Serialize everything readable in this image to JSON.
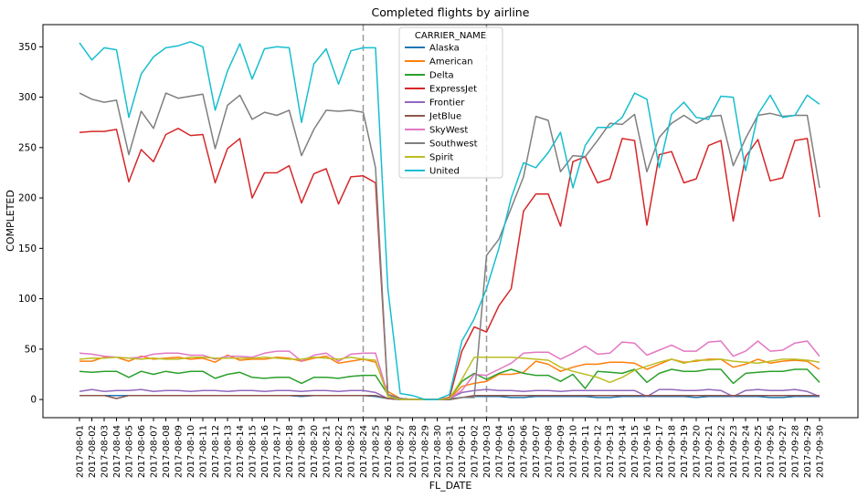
{
  "chart_data": {
    "type": "line",
    "title": "Completed flights by airline",
    "xlabel": "FL_DATE",
    "ylabel": "COMPLETED",
    "ylim": [
      -18,
      372
    ],
    "yticks": [
      0,
      50,
      100,
      150,
      200,
      250,
      300,
      350
    ],
    "grid": false,
    "legend_title": "CARRIER_NAME",
    "legend_position": "top-center",
    "vlines": [
      "2017-08-24",
      "2017-09-03"
    ],
    "x": [
      "2017-08-01",
      "2017-08-02",
      "2017-08-03",
      "2017-08-04",
      "2017-08-05",
      "2017-08-06",
      "2017-08-07",
      "2017-08-08",
      "2017-08-09",
      "2017-08-10",
      "2017-08-11",
      "2017-08-12",
      "2017-08-13",
      "2017-08-14",
      "2017-08-15",
      "2017-08-16",
      "2017-08-17",
      "2017-08-18",
      "2017-08-19",
      "2017-08-20",
      "2017-08-21",
      "2017-08-22",
      "2017-08-23",
      "2017-08-24",
      "2017-08-25",
      "2017-08-26",
      "2017-08-27",
      "2017-08-28",
      "2017-08-29",
      "2017-08-30",
      "2017-08-31",
      "2017-09-01",
      "2017-09-02",
      "2017-09-03",
      "2017-09-04",
      "2017-09-05",
      "2017-09-06",
      "2017-09-07",
      "2017-09-08",
      "2017-09-09",
      "2017-09-10",
      "2017-09-11",
      "2017-09-12",
      "2017-09-13",
      "2017-09-14",
      "2017-09-15",
      "2017-09-16",
      "2017-09-17",
      "2017-09-18",
      "2017-09-19",
      "2017-09-20",
      "2017-09-21",
      "2017-09-22",
      "2017-09-23",
      "2017-09-24",
      "2017-09-25",
      "2017-09-26",
      "2017-09-27",
      "2017-09-28",
      "2017-09-29",
      "2017-09-30"
    ],
    "series": [
      {
        "name": "Alaska",
        "color": "#1f77b4",
        "values": [
          4,
          4,
          4,
          4,
          4,
          4,
          4,
          4,
          4,
          4,
          4,
          4,
          4,
          4,
          4,
          4,
          4,
          4,
          3,
          4,
          4,
          4,
          4,
          4,
          3,
          1,
          0,
          0,
          0,
          0,
          0,
          2,
          3,
          3,
          3,
          2,
          2,
          3,
          3,
          3,
          3,
          3,
          2,
          2,
          3,
          3,
          3,
          3,
          3,
          3,
          2,
          3,
          3,
          3,
          3,
          3,
          2,
          2,
          3,
          3,
          3
        ]
      },
      {
        "name": "American",
        "color": "#ff7f0e",
        "values": [
          38,
          38,
          42,
          42,
          38,
          43,
          40,
          41,
          42,
          40,
          41,
          37,
          44,
          39,
          40,
          40,
          42,
          41,
          38,
          41,
          43,
          36,
          38,
          40,
          37,
          8,
          1,
          0,
          0,
          0,
          1,
          13,
          16,
          18,
          25,
          25,
          27,
          38,
          35,
          28,
          32,
          35,
          35,
          37,
          37,
          36,
          30,
          35,
          40,
          37,
          38,
          40,
          40,
          32,
          35,
          40,
          36,
          38,
          39,
          38,
          30
        ]
      },
      {
        "name": "Delta",
        "color": "#2ca02c",
        "values": [
          28,
          27,
          28,
          28,
          22,
          28,
          25,
          28,
          26,
          28,
          28,
          21,
          25,
          27,
          22,
          21,
          22,
          22,
          16,
          22,
          22,
          21,
          23,
          24,
          24,
          5,
          1,
          0,
          0,
          0,
          1,
          18,
          26,
          20,
          26,
          30,
          26,
          24,
          24,
          18,
          25,
          11,
          28,
          27,
          26,
          30,
          17,
          26,
          30,
          28,
          28,
          30,
          30,
          16,
          26,
          27,
          28,
          28,
          30,
          30,
          17
        ]
      },
      {
        "name": "ExpressJet",
        "color": "#d62728",
        "values": [
          265,
          266,
          266,
          268,
          216,
          248,
          236,
          263,
          269,
          262,
          263,
          215,
          249,
          259,
          200,
          225,
          225,
          232,
          195,
          224,
          229,
          194,
          221,
          222,
          215,
          5,
          1,
          0,
          0,
          0,
          2,
          48,
          72,
          67,
          93,
          110,
          187,
          204,
          204,
          172,
          236,
          241,
          215,
          219,
          259,
          257,
          173,
          243,
          246,
          215,
          219,
          252,
          257,
          177,
          241,
          258,
          217,
          220,
          257,
          259,
          181
        ]
      },
      {
        "name": "Frontier",
        "color": "#9467bd",
        "values": [
          8,
          10,
          8,
          9,
          9,
          10,
          8,
          9,
          9,
          8,
          9,
          9,
          8,
          9,
          9,
          8,
          9,
          9,
          8,
          9,
          9,
          8,
          9,
          9,
          7,
          1,
          0,
          0,
          0,
          0,
          1,
          7,
          9,
          10,
          9,
          9,
          8,
          9,
          9,
          8,
          9,
          9,
          9,
          9,
          9,
          9,
          3,
          10,
          10,
          9,
          9,
          10,
          9,
          3,
          9,
          10,
          9,
          9,
          10,
          8,
          3
        ]
      },
      {
        "name": "JetBlue",
        "color": "#8c564b",
        "values": [
          4,
          4,
          4,
          1,
          4,
          4,
          4,
          4,
          4,
          4,
          4,
          4,
          4,
          4,
          4,
          4,
          4,
          4,
          4,
          4,
          4,
          4,
          4,
          4,
          4,
          1,
          0,
          0,
          0,
          0,
          0,
          2,
          4,
          4,
          4,
          4,
          4,
          4,
          4,
          4,
          4,
          4,
          4,
          4,
          4,
          4,
          4,
          4,
          4,
          4,
          4,
          4,
          4,
          4,
          4,
          4,
          4,
          4,
          4,
          4,
          4
        ]
      },
      {
        "name": "SkyWest",
        "color": "#e377c2",
        "values": [
          46,
          45,
          43,
          42,
          41,
          42,
          45,
          46,
          46,
          44,
          44,
          40,
          43,
          43,
          42,
          46,
          48,
          48,
          38,
          44,
          46,
          38,
          45,
          46,
          46,
          5,
          0,
          0,
          0,
          0,
          1,
          9,
          25,
          24,
          30,
          36,
          46,
          47,
          47,
          40,
          46,
          53,
          45,
          46,
          57,
          56,
          44,
          49,
          54,
          48,
          48,
          57,
          58,
          43,
          48,
          58,
          48,
          49,
          56,
          58,
          43
        ]
      },
      {
        "name": "Southwest",
        "color": "#7f7f7f",
        "values": [
          304,
          298,
          295,
          297,
          243,
          286,
          269,
          304,
          299,
          301,
          303,
          249,
          292,
          302,
          278,
          285,
          282,
          287,
          242,
          268,
          287,
          286,
          287,
          285,
          230,
          5,
          1,
          0,
          0,
          0,
          1,
          2,
          2,
          143,
          159,
          190,
          221,
          281,
          277,
          226,
          242,
          241,
          257,
          274,
          273,
          283,
          226,
          260,
          274,
          282,
          274,
          281,
          282,
          232,
          259,
          282,
          284,
          281,
          282,
          282,
          210
        ]
      },
      {
        "name": "Spirit",
        "color": "#bcbd22",
        "values": [
          40,
          41,
          41,
          42,
          41,
          40,
          41,
          40,
          40,
          42,
          42,
          41,
          41,
          41,
          41,
          42,
          41,
          40,
          40,
          42,
          41,
          40,
          42,
          40,
          39,
          3,
          0,
          0,
          0,
          0,
          1,
          20,
          42,
          42,
          42,
          42,
          41,
          40,
          39,
          32,
          28,
          25,
          22,
          17,
          22,
          29,
          33,
          37,
          40,
          36,
          39,
          39,
          40,
          38,
          37,
          36,
          38,
          40,
          40,
          39,
          37
        ]
      },
      {
        "name": "United",
        "color": "#17becf",
        "values": [
          354,
          337,
          349,
          347,
          280,
          323,
          340,
          349,
          351,
          355,
          350,
          287,
          326,
          353,
          318,
          348,
          350,
          349,
          275,
          333,
          348,
          313,
          346,
          349,
          349,
          110,
          6,
          4,
          0,
          0,
          5,
          58,
          80,
          110,
          150,
          200,
          235,
          230,
          245,
          265,
          210,
          252,
          270,
          270,
          280,
          304,
          298,
          230,
          283,
          295,
          280,
          278,
          301,
          300,
          227,
          283,
          302,
          280,
          282,
          302,
          293
        ]
      }
    ]
  }
}
